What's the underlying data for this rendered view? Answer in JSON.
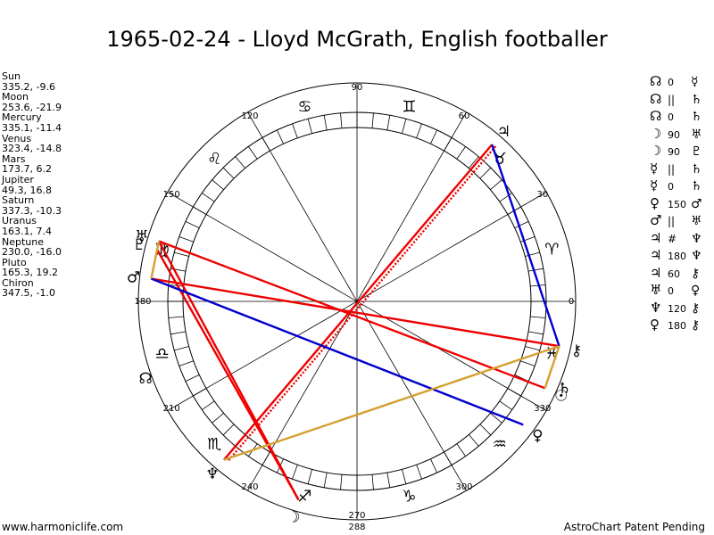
{
  "title": "1965-02-24 - Lloyd McGrath, English footballer",
  "footer_left": "www.harmoniclife.com",
  "footer_right": "AstroChart Patent Pending",
  "planets": [
    {
      "name": "Sun",
      "coords": "335.2, -9.6",
      "glyph": "☉"
    },
    {
      "name": "Moon",
      "coords": "253.6, -21.9",
      "glyph": "☽"
    },
    {
      "name": "Mercury",
      "coords": "335.1, -11.4",
      "glyph": "☿"
    },
    {
      "name": "Venus",
      "coords": "323.4, -14.8",
      "glyph": "♀"
    },
    {
      "name": "Mars",
      "coords": "173.7, 6.2",
      "glyph": "♂"
    },
    {
      "name": "Jupiter",
      "coords": "49.3, 16.8",
      "glyph": "♃"
    },
    {
      "name": "Saturn",
      "coords": "337.3, -10.3",
      "glyph": "♄"
    },
    {
      "name": "Uranus",
      "coords": "163.1, 7.4",
      "glyph": "♅"
    },
    {
      "name": "Neptune",
      "coords": "230.0, -16.0",
      "glyph": "♆"
    },
    {
      "name": "Pluto",
      "coords": "165.3, 19.2",
      "glyph": "♇"
    },
    {
      "name": "Chiron",
      "coords": "347.5, -1.0",
      "glyph": "⚷"
    }
  ],
  "aspects": [
    {
      "p1": "☊",
      "aspect": "0",
      "p2": "☿"
    },
    {
      "p1": "☊",
      "aspect": "||",
      "p2": "♄"
    },
    {
      "p1": "☊",
      "aspect": "0",
      "p2": "♄"
    },
    {
      "p1": "☽",
      "aspect": "90",
      "p2": "♅"
    },
    {
      "p1": "☽",
      "aspect": "90",
      "p2": "♇"
    },
    {
      "p1": "☿",
      "aspect": "||",
      "p2": "♄"
    },
    {
      "p1": "☿",
      "aspect": "0",
      "p2": "♄"
    },
    {
      "p1": "♀",
      "aspect": "150",
      "p2": "♂"
    },
    {
      "p1": "♂",
      "aspect": "||",
      "p2": "♅"
    },
    {
      "p1": "♃",
      "aspect": "#",
      "p2": "♆"
    },
    {
      "p1": "♃",
      "aspect": "180",
      "p2": "♆"
    },
    {
      "p1": "♃",
      "aspect": "60",
      "p2": "⚷"
    },
    {
      "p1": "♅",
      "aspect": "0",
      "p2": "♀"
    },
    {
      "p1": "♆",
      "aspect": "120",
      "p2": "⚷"
    },
    {
      "p1": "♀",
      "aspect": "180",
      "p2": "⚷"
    }
  ],
  "degree_labels": [
    "0",
    "30",
    "60",
    "90",
    "120",
    "150",
    "180",
    "210",
    "240",
    "270",
    "300",
    "330"
  ],
  "bottom_label": "288",
  "zodiac": [
    {
      "name": "aries",
      "glyph": "♈",
      "lon": 15
    },
    {
      "name": "taurus",
      "glyph": "♉",
      "lon": 45
    },
    {
      "name": "gemini",
      "glyph": "♊",
      "lon": 75
    },
    {
      "name": "cancer",
      "glyph": "♋",
      "lon": 105
    },
    {
      "name": "leo",
      "glyph": "♌",
      "lon": 135
    },
    {
      "name": "virgo",
      "glyph": "♍",
      "lon": 165
    },
    {
      "name": "libra",
      "glyph": "♎",
      "lon": 195
    },
    {
      "name": "scorpio",
      "glyph": "♏",
      "lon": 225
    },
    {
      "name": "sagittarius",
      "glyph": "♐",
      "lon": 255
    },
    {
      "name": "capricorn",
      "glyph": "♑",
      "lon": 285
    },
    {
      "name": "aquarius",
      "glyph": "♒",
      "lon": 315
    },
    {
      "name": "pisces",
      "glyph": "♓",
      "lon": 345
    }
  ],
  "chart_glyphs": [
    {
      "name": "jupiter",
      "glyph": "♃",
      "lon": 49.3
    },
    {
      "name": "mars",
      "glyph": "♂",
      "lon": 173.7
    },
    {
      "name": "uranus",
      "glyph": "♅",
      "lon": 163.1
    },
    {
      "name": "pluto",
      "glyph": "♇",
      "lon": 165.3
    },
    {
      "name": "north-node",
      "glyph": "☊",
      "lon": 200
    },
    {
      "name": "neptune",
      "glyph": "♆",
      "lon": 230.0
    },
    {
      "name": "moon",
      "glyph": "☽",
      "lon": 253.6
    },
    {
      "name": "venus",
      "glyph": "♀",
      "lon": 323.4
    },
    {
      "name": "sun",
      "glyph": "☉",
      "lon": 335.2
    },
    {
      "name": "saturn",
      "glyph": "♄",
      "lon": 337.3
    },
    {
      "name": "chiron",
      "glyph": "⚷",
      "lon": 347.5
    }
  ],
  "aspect_lines": [
    {
      "a": 335.2,
      "b": 163.1,
      "color": "#ee0000",
      "style": "solid"
    },
    {
      "a": 173.7,
      "b": 347.5,
      "color": "#ee0000",
      "style": "solid"
    },
    {
      "a": 49.3,
      "b": 230.0,
      "color": "#ee0000",
      "style": "solid"
    },
    {
      "a": 49.3,
      "b": 230.0,
      "color": "#ee0000",
      "style": "dotted"
    },
    {
      "a": 163.1,
      "b": 253.6,
      "color": "#ee0000",
      "style": "solid"
    },
    {
      "a": 165.3,
      "b": 253.6,
      "color": "#ee0000",
      "style": "solid"
    },
    {
      "a": 49.3,
      "b": 347.5,
      "color": "#0000cc",
      "style": "solid"
    },
    {
      "a": 173.7,
      "b": 323.4,
      "color": "#0000cc",
      "style": "solid"
    },
    {
      "a": 230.0,
      "b": 347.5,
      "color": "#d4a030",
      "style": "solid"
    },
    {
      "a": 163.1,
      "b": 173.7,
      "color": "#d4a030",
      "style": "solid"
    },
    {
      "a": 335.2,
      "b": 347.5,
      "color": "#d4a030",
      "style": "solid"
    }
  ],
  "colors": {
    "red": "#ee0000",
    "blue": "#0000cc",
    "gold": "#d4a030"
  }
}
